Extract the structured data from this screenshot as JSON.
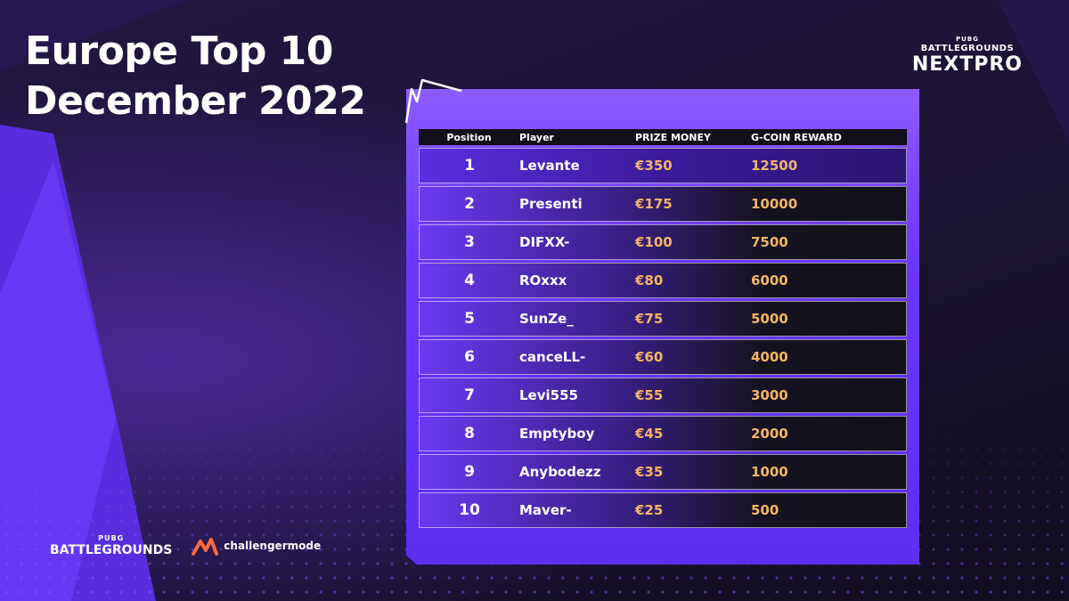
{
  "title": {
    "line1": "Europe Top 10",
    "line2": "December 2022"
  },
  "brand": {
    "top": "PUBG",
    "mid": "BATTLEGROUNDS",
    "name": "NEXTPRO"
  },
  "table": {
    "headers": {
      "position": "Position",
      "player": "Player",
      "prize": "PRIZE MONEY",
      "coin": "G-COIN REWARD"
    },
    "rows": [
      {
        "position": "1",
        "player": "Levante",
        "prize": "€350",
        "coin": "12500"
      },
      {
        "position": "2",
        "player": "Presenti",
        "prize": "€175",
        "coin": "10000"
      },
      {
        "position": "3",
        "player": "DIFXX-",
        "prize": "€100",
        "coin": "7500"
      },
      {
        "position": "4",
        "player": "ROxxx",
        "prize": "€80",
        "coin": "6000"
      },
      {
        "position": "5",
        "player": "SunZe_",
        "prize": "€75",
        "coin": "5000"
      },
      {
        "position": "6",
        "player": "canceLL-",
        "prize": "€60",
        "coin": "4000"
      },
      {
        "position": "7",
        "player": "Levi555",
        "prize": "€55",
        "coin": "3000"
      },
      {
        "position": "8",
        "player": "Emptyboy",
        "prize": "€45",
        "coin": "2000"
      },
      {
        "position": "9",
        "player": "Anybodezz",
        "prize": "€35",
        "coin": "1000"
      },
      {
        "position": "10",
        "player": "Maver-",
        "prize": "€25",
        "coin": "500"
      }
    ]
  },
  "footer": {
    "pubg_top": "PUBG",
    "pubg_bottom": "BATTLEGROUNDS",
    "partner": "challengermode"
  },
  "colors": {
    "accent": "#6b37ff",
    "reward": "#f3b565",
    "background": "#1a1230"
  }
}
